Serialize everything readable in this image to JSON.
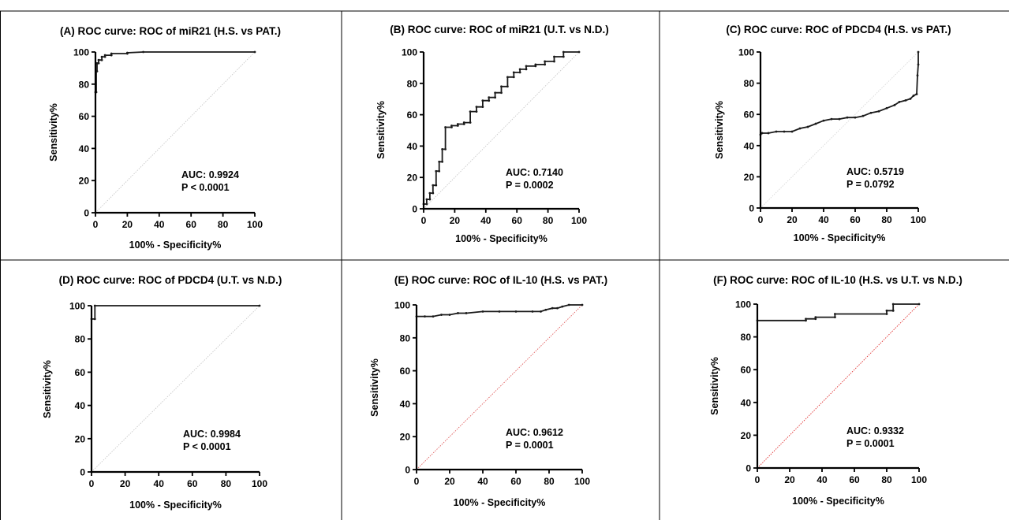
{
  "chart_data": [
    {
      "type": "line",
      "title": "(A) ROC curve: ROC of miR21 (H.S. vs PAT.)",
      "xlabel": "100% - Specificity%",
      "ylabel": "Sensitivity%",
      "xlim": [
        0,
        100
      ],
      "ylim": [
        0,
        100
      ],
      "xticks": [
        "0",
        "20",
        "40",
        "60",
        "80",
        "100"
      ],
      "yticks": [
        "0",
        "20",
        "40",
        "60",
        "80",
        "100"
      ],
      "auc_text": "AUC: 0.9924",
      "p_text": "P < 0.0001",
      "series": [
        {
          "x": [
            0,
            0,
            0.5,
            0.5,
            1,
            1,
            2,
            2,
            4,
            4,
            6,
            6,
            10,
            10,
            20,
            20,
            30,
            100
          ],
          "y": [
            0,
            75,
            75,
            88,
            88,
            93,
            93,
            95,
            95,
            97,
            97,
            98,
            98,
            99,
            99,
            99.5,
            100,
            100
          ]
        }
      ],
      "reference_line": {
        "x": [
          0,
          100
        ],
        "y": [
          0,
          100
        ],
        "color": "#c8c8c8"
      },
      "curve_color": "#1a1a1a"
    },
    {
      "type": "line",
      "title": "(B) ROC curve: ROC of miR21 (U.T. vs N.D.)",
      "xlabel": "100% - Specificity%",
      "ylabel": "Sensitivity%",
      "xlim": [
        0,
        100
      ],
      "ylim": [
        0,
        100
      ],
      "xticks": [
        "0",
        "20",
        "40",
        "60",
        "80",
        "100"
      ],
      "yticks": [
        "0",
        "20",
        "40",
        "60",
        "80",
        "100"
      ],
      "auc_text": "AUC: 0.7140",
      "p_text": "P = 0.0002",
      "series": [
        {
          "x": [
            0,
            0,
            2,
            2,
            4,
            4,
            6,
            6,
            8,
            8,
            10,
            10,
            12,
            12,
            14,
            14,
            18,
            18,
            22,
            22,
            26,
            26,
            30,
            30,
            34,
            34,
            38,
            38,
            42,
            42,
            46,
            46,
            50,
            50,
            54,
            54,
            58,
            58,
            62,
            62,
            66,
            66,
            72,
            72,
            78,
            78,
            84,
            84,
            90,
            90,
            100
          ],
          "y": [
            0,
            3,
            3,
            6,
            6,
            10,
            10,
            15,
            15,
            24,
            24,
            30,
            30,
            38,
            38,
            52,
            52,
            53,
            53,
            54,
            54,
            55,
            55,
            62,
            62,
            65,
            65,
            69,
            69,
            71,
            71,
            74,
            74,
            78,
            78,
            84,
            84,
            87,
            87,
            89,
            89,
            91,
            91,
            92,
            92,
            94,
            94,
            97,
            97,
            100,
            100
          ]
        }
      ],
      "reference_line": {
        "x": [
          0,
          100
        ],
        "y": [
          0,
          100
        ],
        "color": "#c8c8c8"
      },
      "curve_color": "#1a1a1a"
    },
    {
      "type": "line",
      "title": "(C) ROC curve: ROC of PDCD4 (H.S. vs PAT.)",
      "xlabel": "100% - Specificity%",
      "ylabel": "Sensitivity%",
      "xlim": [
        0,
        100
      ],
      "ylim": [
        0,
        100
      ],
      "xticks": [
        "0",
        "20",
        "40",
        "60",
        "80",
        "100"
      ],
      "yticks": [
        "0",
        "20",
        "40",
        "60",
        "80",
        "100"
      ],
      "auc_text": "AUC: 0.5719",
      "p_text": "P = 0.0792",
      "series": [
        {
          "x": [
            0,
            0,
            1,
            5,
            10,
            15,
            20,
            25,
            30,
            35,
            40,
            45,
            50,
            55,
            60,
            65,
            70,
            75,
            80,
            85,
            88,
            92,
            95,
            97,
            99,
            99.5,
            100,
            100
          ],
          "y": [
            0,
            47,
            48,
            48,
            49,
            49,
            49,
            51,
            52,
            54,
            56,
            57,
            57,
            58,
            58,
            59,
            61,
            62,
            64,
            66,
            68,
            69,
            70,
            72,
            73,
            85,
            92,
            100
          ]
        }
      ],
      "reference_line": {
        "x": [
          0,
          100
        ],
        "y": [
          0,
          100
        ],
        "color": "#d8d8d8"
      },
      "curve_color": "#1a1a1a"
    },
    {
      "type": "line",
      "title": "(D) ROC curve: ROC of PDCD4 (U.T. vs N.D.)",
      "xlabel": "100% - Specificity%",
      "ylabel": "Sensitivity%",
      "xlim": [
        0,
        100
      ],
      "ylim": [
        0,
        100
      ],
      "xticks": [
        "0",
        "20",
        "40",
        "60",
        "80",
        "100"
      ],
      "yticks": [
        "0",
        "20",
        "40",
        "60",
        "80",
        "100"
      ],
      "auc_text": "AUC: 0.9984",
      "p_text": "P < 0.0001",
      "series": [
        {
          "x": [
            0,
            0,
            2,
            2,
            100
          ],
          "y": [
            0,
            92,
            92,
            100,
            100
          ]
        }
      ],
      "reference_line": {
        "x": [
          0,
          100
        ],
        "y": [
          0,
          100
        ],
        "color": "#c8c8c8"
      },
      "curve_color": "#1a1a1a"
    },
    {
      "type": "line",
      "title": "(E) ROC curve: ROC of IL-10 (H.S. vs PAT.)",
      "xlabel": "100% - Specificity%",
      "ylabel": "Sensitivity%",
      "xlim": [
        0,
        100
      ],
      "ylim": [
        0,
        100
      ],
      "xticks": [
        "0",
        "20",
        "40",
        "60",
        "80",
        "100"
      ],
      "yticks": [
        "0",
        "20",
        "40",
        "60",
        "80",
        "100"
      ],
      "auc_text": "AUC: 0.9612",
      "p_text": "P = 0.0001",
      "series": [
        {
          "x": [
            0,
            0,
            5,
            10,
            15,
            20,
            25,
            30,
            40,
            50,
            60,
            70,
            75,
            78,
            82,
            85,
            88,
            92,
            100
          ],
          "y": [
            0,
            93,
            93,
            93,
            94,
            94,
            95,
            95,
            96,
            96,
            96,
            96,
            96,
            97,
            98,
            98,
            99,
            100,
            100
          ]
        }
      ],
      "reference_line": {
        "x": [
          0,
          100
        ],
        "y": [
          0,
          100
        ],
        "color": "#e06060"
      },
      "curve_color": "#1a1a1a"
    },
    {
      "type": "line",
      "title": "(F) ROC curve: ROC of IL-10 (H.S. vs U.T. vs N.D.)",
      "xlabel": "100% - Specificity%",
      "ylabel": "Sensitivity%",
      "xlim": [
        0,
        100
      ],
      "ylim": [
        0,
        100
      ],
      "xticks": [
        "0",
        "20",
        "40",
        "60",
        "80",
        "100"
      ],
      "yticks": [
        "0",
        "20",
        "40",
        "60",
        "80",
        "100"
      ],
      "auc_text": "AUC: 0.9332",
      "p_text": "P = 0.0001",
      "series": [
        {
          "x": [
            0,
            0,
            30,
            30,
            36,
            36,
            48,
            48,
            80,
            80,
            84,
            84,
            100
          ],
          "y": [
            0,
            90,
            90,
            91,
            91,
            92,
            92,
            94,
            94,
            96,
            96,
            100,
            100
          ]
        }
      ],
      "reference_line": {
        "x": [
          0,
          100
        ],
        "y": [
          0,
          100
        ],
        "color": "#e03030"
      },
      "curve_color": "#1a1a1a"
    }
  ]
}
